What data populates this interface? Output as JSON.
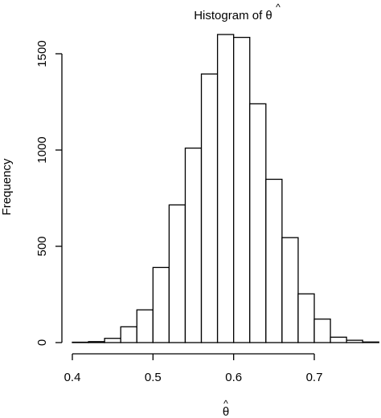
{
  "chart_data": {
    "type": "bar",
    "subtype": "histogram",
    "title": "Histogram of θ̂",
    "title_parts": {
      "prefix": "Histogram of ",
      "symbol": "θ",
      "accent": "^"
    },
    "xlabel": {
      "symbol": "θ",
      "accent": "^"
    },
    "ylabel": "Frequency",
    "bin_edges": [
      0.4,
      0.42,
      0.44,
      0.46,
      0.48,
      0.5,
      0.52,
      0.54,
      0.56,
      0.58,
      0.6,
      0.62,
      0.64,
      0.66,
      0.68,
      0.7,
      0.72,
      0.74,
      0.76,
      0.78
    ],
    "values": [
      2,
      5,
      22,
      82,
      170,
      390,
      715,
      1010,
      1395,
      1600,
      1585,
      1240,
      848,
      545,
      253,
      122,
      28,
      12,
      3
    ],
    "xlim": [
      0.4,
      0.78
    ],
    "ylim": [
      0,
      1600
    ],
    "x_ticks": [
      0.4,
      0.5,
      0.6,
      0.7
    ],
    "x_tick_labels": [
      "0.4",
      "0.5",
      "0.6",
      "0.7"
    ],
    "y_ticks": [
      0,
      500,
      1000,
      1500
    ],
    "y_tick_labels": [
      "0",
      "500",
      "1000",
      "1500"
    ],
    "grid": false,
    "legend": "none",
    "colors": {
      "bar_fill": "#ffffff",
      "bar_stroke": "#000000",
      "axis": "#000000",
      "text": "#000000"
    }
  }
}
